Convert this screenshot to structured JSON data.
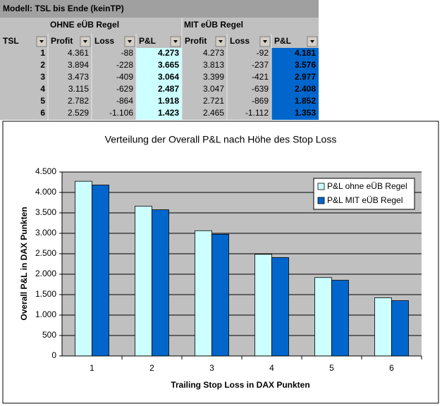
{
  "table": {
    "title": "Modell: TSL bis Ende (keinTP)",
    "groups": [
      "OHNE eÜB Regel",
      "MIT eÜB Regel"
    ],
    "columns": [
      "TSL",
      "Profit",
      "Loss",
      "P&L",
      "Profit",
      "Loss",
      "P&L"
    ],
    "rows": [
      [
        "1",
        "4.361",
        "-88",
        "4.273",
        "4.273",
        "-92",
        "4.181"
      ],
      [
        "2",
        "3.894",
        "-228",
        "3.665",
        "3.813",
        "-237",
        "3.576"
      ],
      [
        "3",
        "3.473",
        "-409",
        "3.064",
        "3.399",
        "-421",
        "2.977"
      ],
      [
        "4",
        "3.115",
        "-629",
        "2.487",
        "3.047",
        "-639",
        "2.408"
      ],
      [
        "5",
        "2.782",
        "-864",
        "1.918",
        "2.721",
        "-869",
        "1.852"
      ],
      [
        "6",
        "2.529",
        "-1.106",
        "1.423",
        "2.465",
        "-1.112",
        "1.353"
      ]
    ]
  },
  "chart_data": {
    "type": "bar",
    "title": "Verteilung der Overall P&L nach Höhe des Stop Loss",
    "x_label": "Trailing Stop Loss in DAX Punkten",
    "y_label": "Overall P&L in DAX Punkten",
    "categories": [
      "1",
      "2",
      "3",
      "4",
      "5",
      "6"
    ],
    "series": [
      {
        "name": "P&L ohne eÜB Regel",
        "color": "#ccffff",
        "values": [
          4273,
          3665,
          3064,
          2487,
          1918,
          1423
        ]
      },
      {
        "name": "P&L MIT eÜB Regel",
        "color": "#0066cc",
        "values": [
          4181,
          3576,
          2977,
          2408,
          1852,
          1353
        ]
      }
    ],
    "ylim": [
      0,
      4500
    ],
    "yticks": [
      0,
      {
        "value": 500,
        "label": "500"
      },
      {
        "value": 1000,
        "label": "1.000"
      },
      {
        "value": 1500,
        "label": "1.500"
      },
      {
        "value": 2000,
        "label": "2.000"
      },
      {
        "value": 2500,
        "label": "2.500"
      },
      {
        "value": 3000,
        "label": "3.000"
      },
      {
        "value": 3500,
        "label": "3.500"
      },
      {
        "value": 4000,
        "label": "4.000"
      },
      {
        "value": 4500,
        "label": "4.500"
      }
    ],
    "grid": true,
    "legend": "top-right"
  }
}
